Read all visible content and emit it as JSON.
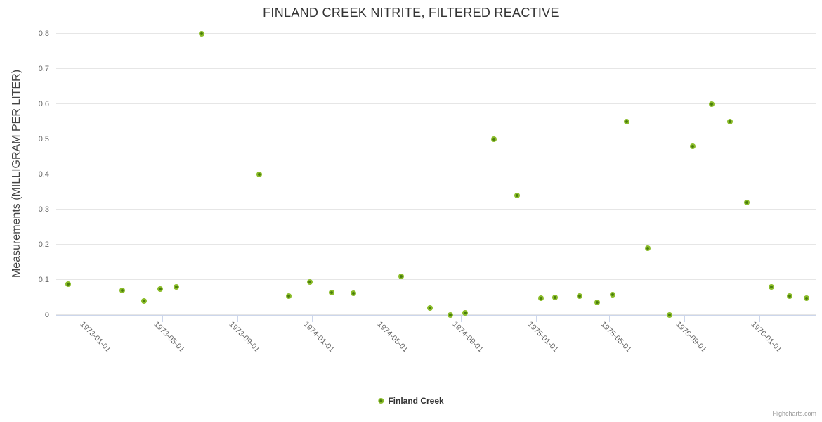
{
  "title": "FINLAND CREEK NITRITE, FILTERED REACTIVE",
  "legend": {
    "label": "Finland Creek"
  },
  "credits": {
    "label": "Highcharts.com"
  },
  "colors": {
    "marker_inner": "#4a7d0d",
    "marker_outer": "#8abc29",
    "grid": "#e6e6e6",
    "axis_line": "#ccd6eb",
    "title_text": "#333333",
    "axis_title_text": "#444444",
    "tick_label_text": "#666666",
    "credits_text": "#999999"
  },
  "chart_data": {
    "type": "scatter",
    "title": "FINLAND CREEK NITRITE, FILTERED REACTIVE",
    "xlabel": "",
    "ylabel": "Measurements (MILLIGRAM PER LITER)",
    "ylim": [
      0,
      0.8
    ],
    "y_ticks": [
      0,
      0.1,
      0.2,
      0.3,
      0.4,
      0.5,
      0.6,
      0.7,
      0.8
    ],
    "y_tick_labels": [
      "0",
      "0.1",
      "0.2",
      "0.3",
      "0.4",
      "0.5",
      "0.6",
      "0.7",
      "0.8"
    ],
    "x_ticks": [
      "1973-01-01",
      "1973-05-01",
      "1973-09-01",
      "1974-01-01",
      "1974-05-01",
      "1974-09-01",
      "1975-01-01",
      "1975-05-01",
      "1975-09-01",
      "1976-01-01"
    ],
    "x_range": [
      "1972-11-09",
      "1976-04-02"
    ],
    "grid": true,
    "legend_position": "bottom-center",
    "series": [
      {
        "name": "Finland Creek",
        "points": [
          {
            "date": "1972-11-28",
            "value": 0.087
          },
          {
            "date": "1973-02-25",
            "value": 0.069
          },
          {
            "date": "1973-04-01",
            "value": 0.039
          },
          {
            "date": "1973-04-28",
            "value": 0.074
          },
          {
            "date": "1973-05-24",
            "value": 0.079
          },
          {
            "date": "1973-07-05",
            "value": 0.8
          },
          {
            "date": "1973-10-06",
            "value": 0.4
          },
          {
            "date": "1973-11-24",
            "value": 0.053
          },
          {
            "date": "1973-12-28",
            "value": 0.094
          },
          {
            "date": "1974-02-02",
            "value": 0.064
          },
          {
            "date": "1974-03-09",
            "value": 0.062
          },
          {
            "date": "1974-05-26",
            "value": 0.11
          },
          {
            "date": "1974-07-12",
            "value": 0.02
          },
          {
            "date": "1974-08-14",
            "value": 0.0
          },
          {
            "date": "1974-09-08",
            "value": 0.005
          },
          {
            "date": "1974-10-25",
            "value": 0.5
          },
          {
            "date": "1974-12-01",
            "value": 0.34
          },
          {
            "date": "1975-01-09",
            "value": 0.047
          },
          {
            "date": "1975-02-02",
            "value": 0.05
          },
          {
            "date": "1975-03-14",
            "value": 0.054
          },
          {
            "date": "1975-04-11",
            "value": 0.035
          },
          {
            "date": "1975-05-07",
            "value": 0.058
          },
          {
            "date": "1975-05-30",
            "value": 0.55
          },
          {
            "date": "1975-07-03",
            "value": 0.19
          },
          {
            "date": "1975-08-07",
            "value": 0.0
          },
          {
            "date": "1975-09-14",
            "value": 0.48
          },
          {
            "date": "1975-10-15",
            "value": 0.6
          },
          {
            "date": "1975-11-14",
            "value": 0.55
          },
          {
            "date": "1975-12-12",
            "value": 0.32
          },
          {
            "date": "1976-01-21",
            "value": 0.08
          },
          {
            "date": "1976-02-20",
            "value": 0.053
          },
          {
            "date": "1976-03-18",
            "value": 0.047
          }
        ]
      }
    ]
  }
}
